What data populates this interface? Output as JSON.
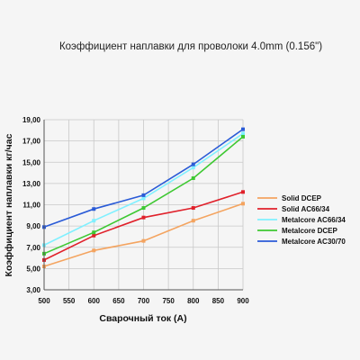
{
  "chart_data": {
    "type": "line",
    "title": "Коэффициент наплавки для проволоки 4.0mm (0.156\")",
    "xlabel": "Сварочный ток (A)",
    "ylabel": "Коэффициент наплавки кг/час",
    "x_ticks": [
      "500",
      "550",
      "600",
      "650",
      "700",
      "750",
      "800",
      "850",
      "900"
    ],
    "y_ticks": [
      "3,00",
      "5,00",
      "7,00",
      "9,00",
      "11,00",
      "13,00",
      "15,00",
      "17,00",
      "19,00"
    ],
    "xlim": [
      500,
      900
    ],
    "ylim": [
      3,
      19
    ],
    "grid": true,
    "legend_position": "right",
    "series": [
      {
        "name": "Solid DCEP",
        "color": "#f4a460",
        "x": [
          500,
          600,
          700,
          800,
          900
        ],
        "y": [
          5.2,
          6.7,
          7.6,
          9.5,
          11.1
        ]
      },
      {
        "name": "Solid AC66/34",
        "color": "#e0202a",
        "x": [
          500,
          600,
          700,
          800,
          900
        ],
        "y": [
          5.8,
          8.1,
          9.8,
          10.7,
          12.2
        ]
      },
      {
        "name": "Metalcore AC66/34",
        "color": "#80f0ff",
        "x": [
          500,
          600,
          700,
          800,
          900
        ],
        "y": [
          7.2,
          9.5,
          11.6,
          14.5,
          17.7
        ]
      },
      {
        "name": "Metalcore DCEP",
        "color": "#3ec832",
        "x": [
          500,
          600,
          700,
          800,
          900
        ],
        "y": [
          6.4,
          8.4,
          10.7,
          13.5,
          17.4
        ]
      },
      {
        "name": "Metalcore AC30/70",
        "color": "#2a5bd7",
        "x": [
          500,
          600,
          700,
          800,
          900
        ],
        "y": [
          8.9,
          10.6,
          11.9,
          14.8,
          18.1
        ]
      }
    ]
  }
}
